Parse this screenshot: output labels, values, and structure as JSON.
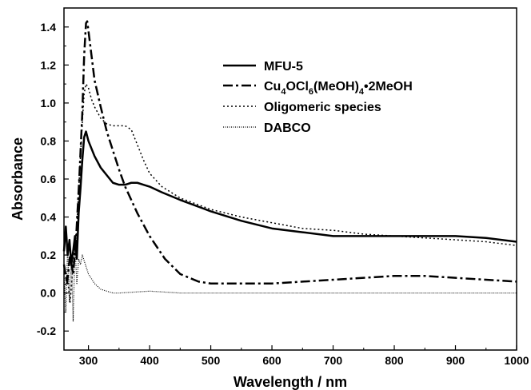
{
  "chart_data": {
    "type": "line",
    "xlabel": "Wavelength / nm",
    "ylabel": "Absorbance",
    "xlim": [
      260,
      1000
    ],
    "ylim": [
      -0.3,
      1.5
    ],
    "x_ticks": [
      300,
      400,
      500,
      600,
      700,
      800,
      900,
      1000
    ],
    "y_ticks": [
      -0.2,
      0.0,
      0.2,
      0.4,
      0.6,
      0.8,
      1.0,
      1.2,
      1.4
    ],
    "x_tick_labels": [
      "300",
      "400",
      "500",
      "600",
      "700",
      "800",
      "900",
      "1000"
    ],
    "y_tick_labels": [
      "-0.2",
      "0.0",
      "0.2",
      "0.4",
      "0.6",
      "0.8",
      "1.0",
      "1.2",
      "1.4"
    ],
    "legend_position": "top-right",
    "series": [
      {
        "name": "MFU-5",
        "style": "solid",
        "x": [
          260,
          263,
          266,
          269,
          272,
          275,
          278,
          281,
          284,
          287,
          290,
          293,
          296,
          300,
          310,
          320,
          330,
          340,
          350,
          360,
          370,
          380,
          390,
          400,
          420,
          450,
          500,
          550,
          600,
          650,
          700,
          750,
          800,
          850,
          900,
          950,
          1000
        ],
        "y": [
          0.22,
          0.35,
          0.2,
          0.28,
          0.15,
          0.22,
          0.3,
          0.18,
          0.42,
          0.55,
          0.7,
          0.82,
          0.85,
          0.8,
          0.72,
          0.66,
          0.62,
          0.58,
          0.57,
          0.57,
          0.58,
          0.58,
          0.57,
          0.56,
          0.53,
          0.49,
          0.43,
          0.38,
          0.34,
          0.32,
          0.3,
          0.3,
          0.3,
          0.3,
          0.3,
          0.29,
          0.27
        ]
      },
      {
        "name": "Cu4OCl6(MeOH)4•2MeOH",
        "style": "dash-dot",
        "x": [
          260,
          265,
          270,
          275,
          280,
          285,
          290,
          293,
          296,
          298,
          300,
          305,
          310,
          320,
          330,
          340,
          350,
          360,
          380,
          400,
          425,
          450,
          480,
          500,
          550,
          600,
          650,
          700,
          750,
          800,
          850,
          900,
          950,
          1000
        ],
        "y": [
          0.15,
          0.05,
          0.2,
          0.1,
          0.3,
          0.6,
          0.95,
          1.25,
          1.42,
          1.43,
          1.38,
          1.25,
          1.12,
          0.98,
          0.85,
          0.75,
          0.65,
          0.56,
          0.42,
          0.3,
          0.18,
          0.1,
          0.06,
          0.05,
          0.05,
          0.05,
          0.06,
          0.07,
          0.08,
          0.09,
          0.09,
          0.08,
          0.07,
          0.06
        ]
      },
      {
        "name": "Oligomeric species",
        "style": "dotted",
        "x": [
          260,
          265,
          270,
          275,
          280,
          285,
          290,
          293,
          296,
          300,
          305,
          310,
          320,
          330,
          340,
          350,
          360,
          370,
          380,
          390,
          400,
          420,
          450,
          500,
          550,
          600,
          650,
          700,
          750,
          800,
          850,
          900,
          950,
          1000
        ],
        "y": [
          0.0,
          0.1,
          -0.05,
          0.15,
          0.3,
          0.6,
          0.9,
          1.05,
          1.1,
          1.08,
          1.02,
          0.98,
          0.92,
          0.89,
          0.88,
          0.88,
          0.88,
          0.86,
          0.78,
          0.7,
          0.63,
          0.56,
          0.5,
          0.44,
          0.4,
          0.37,
          0.34,
          0.33,
          0.31,
          0.3,
          0.29,
          0.28,
          0.27,
          0.25
        ]
      },
      {
        "name": "DABCO",
        "style": "fine-dotted",
        "x": [
          260,
          263,
          266,
          269,
          272,
          275,
          278,
          281,
          284,
          287,
          290,
          295,
          300,
          310,
          320,
          330,
          340,
          350,
          400,
          450,
          500,
          600,
          700,
          800,
          900,
          1000
        ],
        "y": [
          0.1,
          -0.1,
          0.25,
          -0.05,
          0.2,
          -0.15,
          0.25,
          0.05,
          0.18,
          0.15,
          0.2,
          0.15,
          0.1,
          0.05,
          0.02,
          0.01,
          0.0,
          0.0,
          0.01,
          0.0,
          0.0,
          0.0,
          0.0,
          0.0,
          0.0,
          0.0
        ]
      }
    ],
    "legend": {
      "items": [
        {
          "text": "MFU-5",
          "parts": [
            {
              "t": "MFU-5",
              "sub": false
            }
          ]
        },
        {
          "text": "Cu4OCl6(MeOH)4•2MeOH",
          "parts": [
            {
              "t": "Cu",
              "sub": false
            },
            {
              "t": "4",
              "sub": true
            },
            {
              "t": "OCl",
              "sub": false
            },
            {
              "t": "6",
              "sub": true
            },
            {
              "t": "(MeOH)",
              "sub": false
            },
            {
              "t": "4",
              "sub": true
            },
            {
              "t": "•2MeOH",
              "sub": false
            }
          ]
        },
        {
          "text": "Oligomeric species",
          "parts": [
            {
              "t": "Oligomeric species",
              "sub": false
            }
          ]
        },
        {
          "text": "DABCO",
          "parts": [
            {
              "t": "DABCO",
              "sub": false
            }
          ]
        }
      ]
    }
  }
}
